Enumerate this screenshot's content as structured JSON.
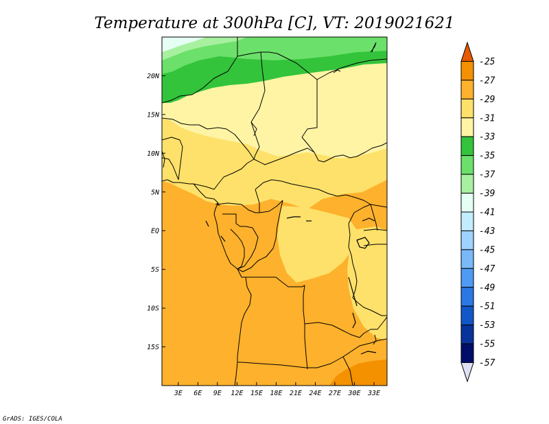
{
  "chart_data": {
    "type": "heatmap",
    "title": "Temperature at 300hPa [C], VT: 2019021621",
    "variable": "Temperature",
    "level": "300hPa",
    "units": "C",
    "valid_time": "2019021621",
    "x_ticks": [
      "3E",
      "6E",
      "9E",
      "12E",
      "15E",
      "18E",
      "21E",
      "24E",
      "27E",
      "30E",
      "33E"
    ],
    "y_ticks": [
      "20N",
      "15N",
      "10N",
      "5N",
      "EQ",
      "5S",
      "10S",
      "15S"
    ],
    "xlim": [
      0.5,
      35
    ],
    "ylim": [
      -20,
      25
    ],
    "colorbar": {
      "labels": [
        "-25",
        "-27",
        "-29",
        "-31",
        "-33",
        "-35",
        "-37",
        "-39",
        "-41",
        "-43",
        "-45",
        "-47",
        "-49",
        "-51",
        "-53",
        "-55",
        "-57"
      ],
      "colors": [
        "#e65a00",
        "#f49100",
        "#fdb12c",
        "#fde16a",
        "#fff4a4",
        "#33c43b",
        "#6be06a",
        "#a7f0a0",
        "#e5fff5",
        "#c4ecff",
        "#9fd2ff",
        "#7ab8f8",
        "#4f9af2",
        "#2a78e4",
        "#1257c8",
        "#08339a",
        "#000e6a",
        "#dfe0f4"
      ]
    },
    "regions": [
      {
        "band": "north of 20N",
        "value_range": "-35 to -39",
        "description": "green band"
      },
      {
        "band": "10N to 20N",
        "value_range": "-31 to -35"
      },
      {
        "band": "5N to 10N",
        "value_range": "-29 to -31"
      },
      {
        "band": "equator to 20S",
        "value_range": "-29 to -31"
      },
      {
        "band": "far southeast",
        "value_range": "-27 to -29"
      }
    ]
  },
  "credit": "GrADS: IGES/COLA"
}
